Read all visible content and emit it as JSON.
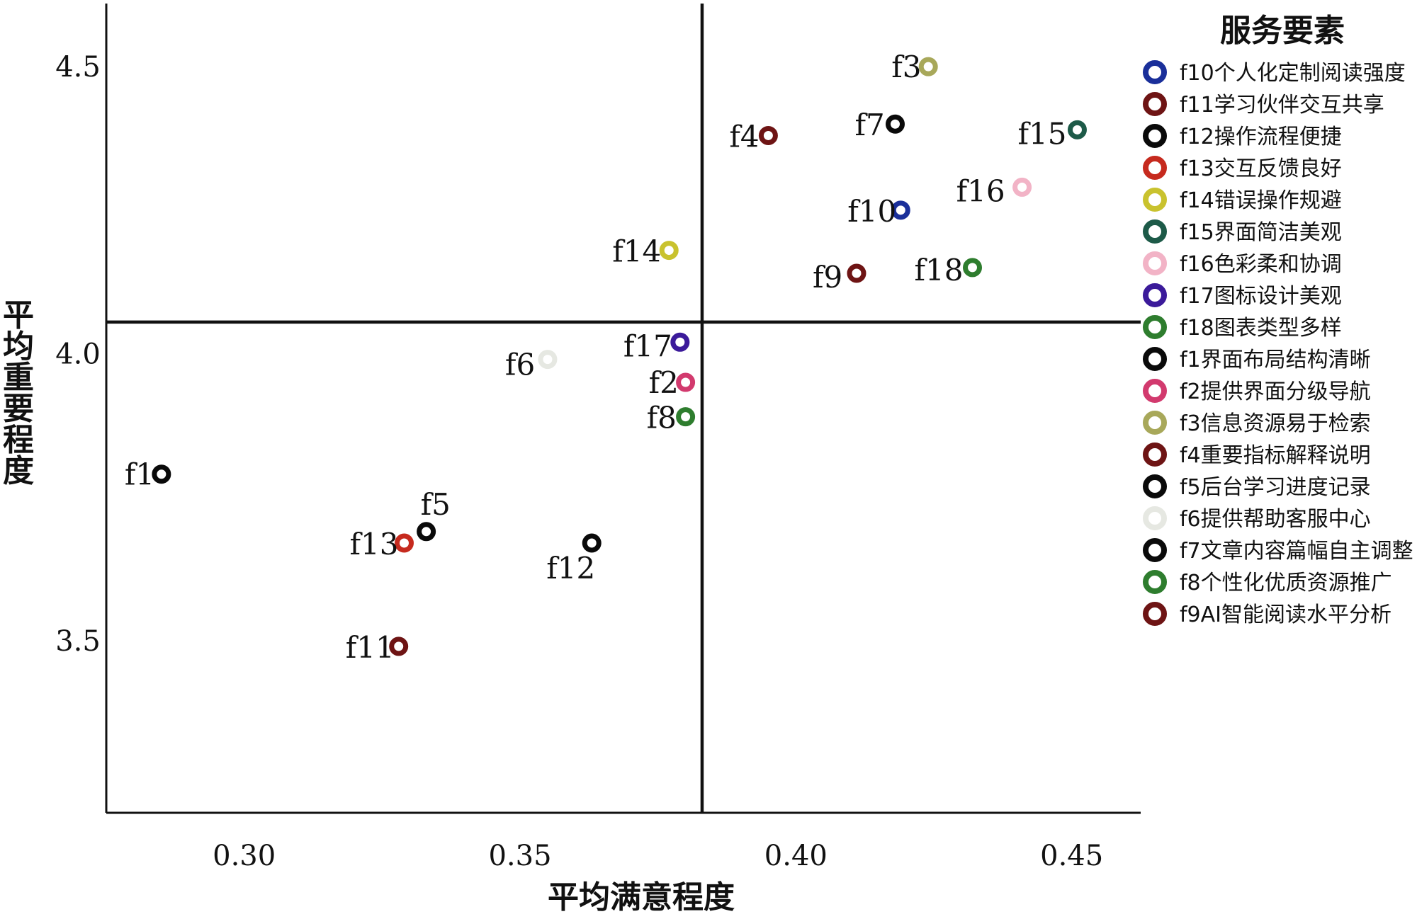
{
  "chart_data": {
    "type": "scatter",
    "title": "",
    "xlabel": "平均满意程度",
    "ylabel": "平均重要程度",
    "xlim": [
      0.275,
      0.4625
    ],
    "ylim": [
      3.2,
      4.61
    ],
    "xticks": [
      0.3,
      0.35,
      0.4,
      0.45
    ],
    "xtick_labels": [
      "0.30",
      "0.35",
      "0.40",
      "0.45"
    ],
    "yticks": [
      3.5,
      4.0,
      4.5
    ],
    "ytick_labels": [
      "3.5",
      "4.0",
      "4.5"
    ],
    "quadrant_lines": {
      "x": 0.383,
      "y": 4.055
    },
    "grid": false,
    "legend": {
      "title": "服务要素",
      "placement": "right",
      "entries": [
        {
          "label": "f10个人化定制阅读强度",
          "color": "#1a2f9a"
        },
        {
          "label": "f11学习伙伴交互共享",
          "color": "#6e1414"
        },
        {
          "label": "f12操作流程便捷",
          "color": "#0a0a0a"
        },
        {
          "label": "f13交互反馈良好",
          "color": "#c62a1e"
        },
        {
          "label": "f14错误操作规避",
          "color": "#c9c22e"
        },
        {
          "label": "f15界面简洁美观",
          "color": "#1d5a48"
        },
        {
          "label": "f16色彩柔和协调",
          "color": "#f2b3c6"
        },
        {
          "label": "f17图标设计美观",
          "color": "#3b1a9a"
        },
        {
          "label": "f18图表类型多样",
          "color": "#2e7d2e"
        },
        {
          "label": "f1界面布局结构清晰",
          "color": "#0a0a0a"
        },
        {
          "label": "f2提供界面分级导航",
          "color": "#d23a6e"
        },
        {
          "label": "f3信息资源易于检索",
          "color": "#a8a85a"
        },
        {
          "label": "f4重要指标解释说明",
          "color": "#6e1414"
        },
        {
          "label": "f5后台学习进度记录",
          "color": "#0a0a0a"
        },
        {
          "label": "f6提供帮助客服中心",
          "color": "#e6e8e2"
        },
        {
          "label": "f7文章内容篇幅自主调整",
          "color": "#0a0a0a"
        },
        {
          "label": "f8个性化优质资源推广",
          "color": "#2e7d2e"
        },
        {
          "label": "f9AI智能阅读水平分析",
          "color": "#6e1414"
        }
      ]
    },
    "points": [
      {
        "label": "f1",
        "x": 0.285,
        "y": 3.79,
        "color": "#0a0a0a"
      },
      {
        "label": "f2",
        "x": 0.38,
        "y": 3.95,
        "color": "#d23a6e"
      },
      {
        "label": "f3",
        "x": 0.424,
        "y": 4.5,
        "color": "#a8a85a"
      },
      {
        "label": "f4",
        "x": 0.395,
        "y": 4.38,
        "color": "#6e1414"
      },
      {
        "label": "f5",
        "x": 0.333,
        "y": 3.69,
        "color": "#0a0a0a"
      },
      {
        "label": "f6",
        "x": 0.355,
        "y": 3.99,
        "color": "#e6e8e2"
      },
      {
        "label": "f7",
        "x": 0.418,
        "y": 4.4,
        "color": "#0a0a0a"
      },
      {
        "label": "f8",
        "x": 0.38,
        "y": 3.89,
        "color": "#2e7d2e"
      },
      {
        "label": "f9",
        "x": 0.411,
        "y": 4.14,
        "color": "#6e1414"
      },
      {
        "label": "f10",
        "x": 0.419,
        "y": 4.25,
        "color": "#1a2f9a"
      },
      {
        "label": "f11",
        "x": 0.328,
        "y": 3.49,
        "color": "#6e1414"
      },
      {
        "label": "f12",
        "x": 0.363,
        "y": 3.67,
        "color": "#0a0a0a"
      },
      {
        "label": "f13",
        "x": 0.329,
        "y": 3.67,
        "color": "#c62a1e"
      },
      {
        "label": "f14",
        "x": 0.377,
        "y": 4.18,
        "color": "#c9c22e"
      },
      {
        "label": "f15",
        "x": 0.451,
        "y": 4.39,
        "color": "#1d5a48"
      },
      {
        "label": "f16",
        "x": 0.441,
        "y": 4.29,
        "color": "#f2b3c6"
      },
      {
        "label": "f17",
        "x": 0.379,
        "y": 4.02,
        "color": "#3b1a9a"
      },
      {
        "label": "f18",
        "x": 0.432,
        "y": 4.15,
        "color": "#2e7d2e"
      }
    ]
  }
}
